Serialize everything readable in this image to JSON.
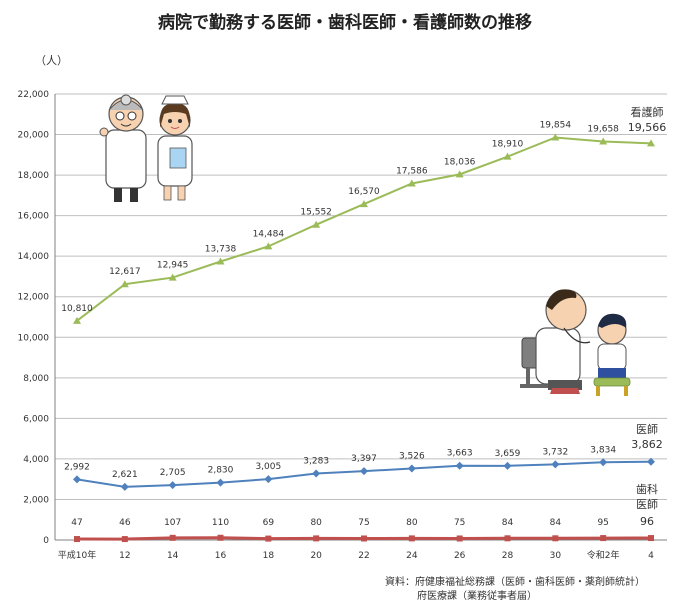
{
  "title": "病院で勤務する医師・歯科医師・看護師数の推移",
  "unit": "（人）",
  "source_lines": [
    "資料：府健康福祉総務課（医師・歯科医師・薬剤師統計）",
    "府医療課（業務従事者届）"
  ],
  "colors": {
    "nurse": "#9bbb59",
    "doctor": "#4f81bd",
    "dentist": "#c0504d",
    "grid": "#bfbfbf",
    "axis": "#808080"
  },
  "icons": [
    "doctor-and-nurse-illustration",
    "doctor-examining-child-illustration"
  ],
  "chart_data": {
    "type": "line",
    "categories": [
      "平成10年",
      "12",
      "14",
      "16",
      "18",
      "20",
      "22",
      "24",
      "26",
      "28",
      "30",
      "令和2年",
      "4"
    ],
    "ylim": [
      0,
      22000
    ],
    "yticks": [
      "0",
      "2,000",
      "4,000",
      "6,000",
      "8,000",
      "10,000",
      "12,000",
      "14,000",
      "16,000",
      "18,000",
      "20,000",
      "22,000"
    ],
    "grid": true,
    "series": [
      {
        "name": "看護師",
        "key": "nurse",
        "marker": "triangle",
        "values": [
          10810,
          12617,
          12945,
          13738,
          14484,
          15552,
          16570,
          17586,
          18036,
          18910,
          19854,
          19658,
          19566
        ],
        "labels": [
          "10,810",
          "12,617",
          "12,945",
          "13,738",
          "14,484",
          "15,552",
          "16,570",
          "17,586",
          "18,036",
          "18,910",
          "19,854",
          "19,658",
          "19,566"
        ]
      },
      {
        "name": "医師",
        "key": "doctor",
        "marker": "diamond",
        "values": [
          2992,
          2621,
          2705,
          2830,
          3005,
          3283,
          3397,
          3526,
          3663,
          3659,
          3732,
          3834,
          3862
        ],
        "labels": [
          "2,992",
          "2,621",
          "2,705",
          "2,830",
          "3,005",
          "3,283",
          "3,397",
          "3,526",
          "3,663",
          "3,659",
          "3,732",
          "3,834",
          "3,862"
        ]
      },
      {
        "name": "歯科医師",
        "key": "dentist",
        "marker": "square",
        "values": [
          47,
          46,
          107,
          110,
          69,
          80,
          75,
          80,
          75,
          84,
          84,
          95,
          96
        ],
        "labels": [
          "47",
          "46",
          "107",
          "110",
          "69",
          "80",
          "75",
          "80",
          "75",
          "84",
          "84",
          "95",
          "96"
        ]
      }
    ]
  }
}
